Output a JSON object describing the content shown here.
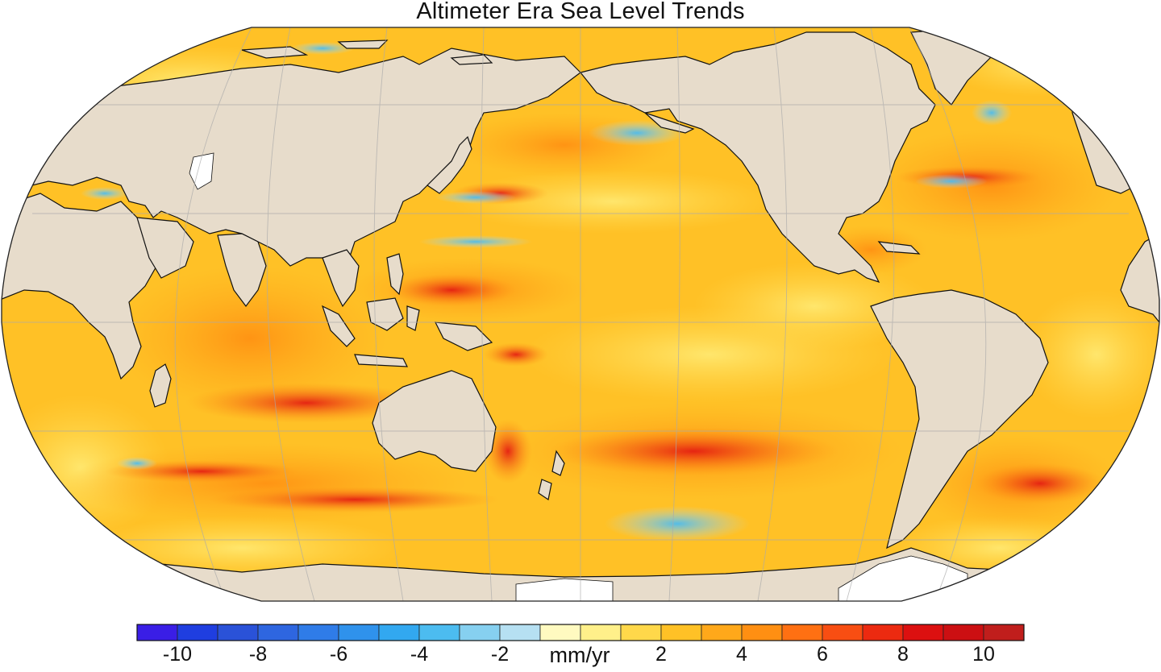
{
  "title": "Altimeter Era Sea Level Trends",
  "colorbar": {
    "units": "mm/yr",
    "tick_labels": [
      "-10",
      "-8",
      "-6",
      "-4",
      "-2",
      "2",
      "4",
      "6",
      "8",
      "10"
    ],
    "tick_values": [
      -10,
      -8,
      -6,
      -4,
      -2,
      2,
      4,
      6,
      8,
      10
    ],
    "min": -11,
    "max": 11,
    "bin_width": 1,
    "colors": [
      "#3a1ee6",
      "#1f3ee0",
      "#2a52d8",
      "#2e66e0",
      "#2f7ce8",
      "#2f92ec",
      "#32a8f0",
      "#4cbcf0",
      "#86d0f0",
      "#b6e0f2",
      "#fffac0",
      "#fff08a",
      "#ffd84a",
      "#ffc126",
      "#ffa81a",
      "#ff8f12",
      "#ff7012",
      "#f84e12",
      "#ec2a10",
      "#dc1010",
      "#cc0f12",
      "#c01e1c"
    ]
  },
  "map": {
    "projection": "Robinson",
    "central_meridian": "180",
    "land_color": "#e7dccb",
    "ice_color": "#ffffff",
    "ocean_base_color": "#ffc126",
    "grid": true,
    "features": [
      {
        "name": "north-america",
        "type": "land"
      },
      {
        "name": "south-america",
        "type": "land"
      },
      {
        "name": "africa",
        "type": "land"
      },
      {
        "name": "europe-asia",
        "type": "land"
      },
      {
        "name": "australia",
        "type": "land"
      },
      {
        "name": "antarctica",
        "type": "land"
      },
      {
        "name": "greenland",
        "type": "land"
      },
      {
        "name": "new-zealand",
        "type": "land"
      },
      {
        "name": "madagascar",
        "type": "land"
      },
      {
        "name": "japan",
        "type": "land"
      },
      {
        "name": "indonesia",
        "type": "land"
      },
      {
        "name": "philippines",
        "type": "land"
      },
      {
        "name": "papua",
        "type": "land"
      },
      {
        "name": "arctic-islands",
        "type": "land"
      },
      {
        "name": "alaska-peninsula",
        "type": "land"
      }
    ]
  }
}
